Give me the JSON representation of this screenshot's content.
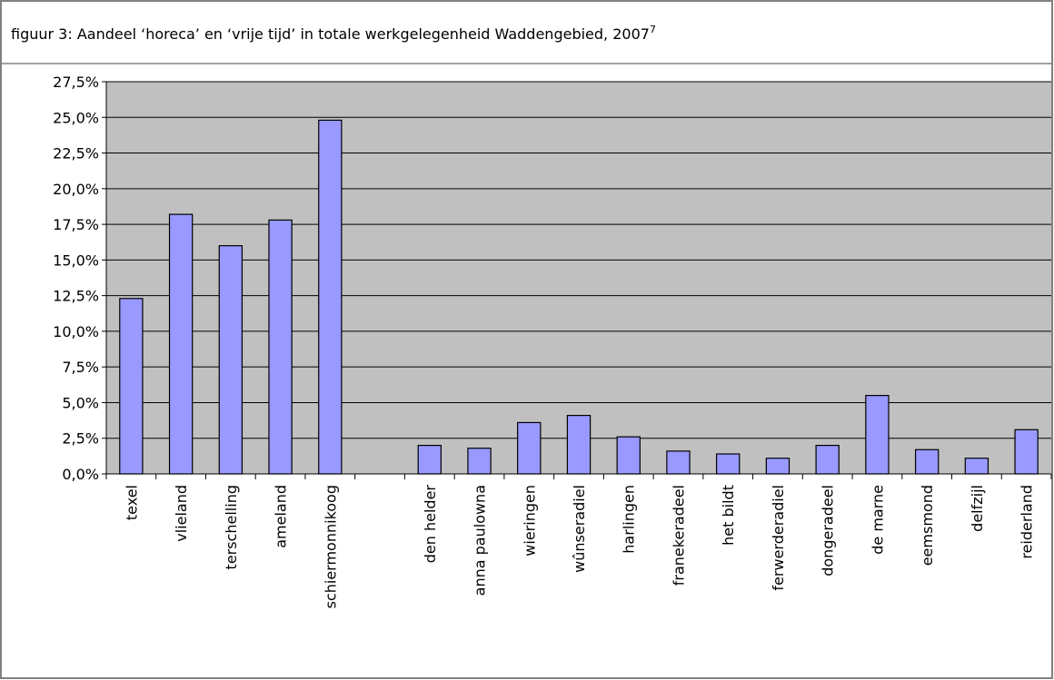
{
  "chart_data": {
    "type": "bar",
    "title": "figuur 3: Aandeel ‘horeca’ en ‘vrije tijd’ in totale werkgelegenheid Waddengebied, 2007",
    "title_note": "7",
    "categories": [
      "texel",
      "vlieland",
      "terschelling",
      "ameland",
      "schiermonnikoog",
      null,
      "den helder",
      "anna paulowna",
      "wieringen",
      "wûnseradiel",
      "harlingen",
      "franekeradeel",
      "het bildt",
      "ferwerderadiel",
      "dongeradeel",
      "de marne",
      "eemsmond",
      "delfzijl",
      "reiderland"
    ],
    "values": [
      12.3,
      18.2,
      16.0,
      17.8,
      24.8,
      null,
      2.0,
      1.8,
      3.6,
      4.1,
      2.6,
      1.6,
      1.4,
      1.1,
      2.0,
      5.5,
      1.7,
      1.1,
      3.1
    ],
    "color": "#9999ff",
    "ylim": [
      0,
      27.5
    ],
    "yticks": [
      {
        "value": 0,
        "label": "0,0%"
      },
      {
        "value": 2.5,
        "label": "2,5%"
      },
      {
        "value": 5,
        "label": "5,0%"
      },
      {
        "value": 7.5,
        "label": "7,5%"
      },
      {
        "value": 10,
        "label": "10,0%"
      },
      {
        "value": 12.5,
        "label": "12,5%"
      },
      {
        "value": 15,
        "label": "15,0%"
      },
      {
        "value": 17.5,
        "label": "17,5%"
      },
      {
        "value": 20,
        "label": "20,0%"
      },
      {
        "value": 22.5,
        "label": "22,5%"
      },
      {
        "value": 25,
        "label": "25,0%"
      },
      {
        "value": 27.5,
        "label": "27,5%"
      }
    ],
    "grid": true
  }
}
